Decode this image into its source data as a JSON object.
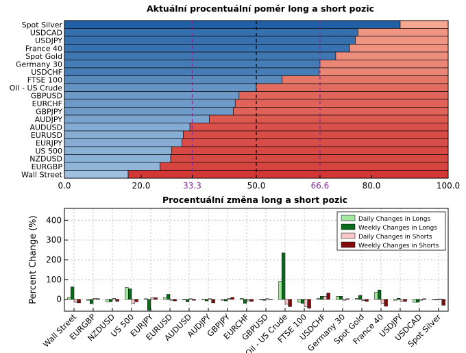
{
  "chart_data": [
    {
      "type": "bar",
      "orientation": "horizontal",
      "stacked": true,
      "title": "Aktuální procentuální poměr long a short pozic",
      "categories": [
        "Spot Silver",
        "USDCAD",
        "USDJPY",
        "France 40",
        "Spot Gold",
        "Germany 30",
        "USDCHF",
        "FTSE 100",
        "Oil - US Crude",
        "GBPUSD",
        "EURCHF",
        "GBPJPY",
        "AUDJPY",
        "AUDUSD",
        "EURUSD",
        "EURJPY",
        "US 500",
        "NZDUSD",
        "EURGBP",
        "Wall Street"
      ],
      "series": [
        {
          "values": [
            87.5,
            76.5,
            75.8,
            74.3,
            70.7,
            66.6,
            66.3,
            56.7,
            50.0,
            45.5,
            44.5,
            44.0,
            37.8,
            32.7,
            31.0,
            30.6,
            27.9,
            27.7,
            24.9,
            16.6
          ]
        },
        {
          "values": [
            12.5,
            23.5,
            24.2,
            25.7,
            29.3,
            33.4,
            33.7,
            43.3,
            50.0,
            54.5,
            55.5,
            56.0,
            62.2,
            67.3,
            69.0,
            69.4,
            72.1,
            72.3,
            75.1,
            83.4
          ]
        }
      ],
      "xlim": [
        0,
        100
      ],
      "xticks": [
        "0.0",
        "20.0",
        "33.3",
        "50.0",
        "66.6",
        "80.0",
        "100.0"
      ],
      "reference_lines": [
        33.3,
        50.0,
        66.6
      ],
      "colors": {
        "long_ramp": [
          "#bdd7ee",
          "#0b4f9a"
        ],
        "short_ramp": [
          "#fcbba1",
          "#c81d1f"
        ],
        "ref_purple": "#7e2a92"
      }
    },
    {
      "type": "bar",
      "title": "Procentuální změna long a short pozic",
      "ylabel": "Percent Change (%)",
      "categories": [
        "Wall Street",
        "EURGBP",
        "NZDUSD",
        "US 500",
        "EURJPY",
        "EURUSD",
        "AUDUSD",
        "AUDJPY",
        "GBPJPY",
        "EURCHF",
        "GBPUSD",
        "Oil - US Crude",
        "FTSE 100",
        "USDCHF",
        "Germany 30",
        "Spot Gold",
        "France 40",
        "USDJPY",
        "USDCAD",
        "Spot Silver"
      ],
      "series": [
        {
          "name": "Daily Changes in Longs",
          "color": "#a5e8a2",
          "values": [
            10,
            -5,
            -13,
            60,
            3,
            10,
            -3,
            -3,
            -5,
            5,
            -3,
            90,
            -15,
            5,
            15,
            5,
            35,
            -5,
            -15,
            -2
          ]
        },
        {
          "name": "Weekly Changes in Longs",
          "color": "#0b6b1d",
          "values": [
            63,
            -22,
            -12,
            53,
            -55,
            25,
            -12,
            -8,
            -8,
            -20,
            -5,
            235,
            -20,
            15,
            15,
            20,
            47,
            5,
            -15,
            -3
          ]
        },
        {
          "name": "Daily Changes in Shorts",
          "color": "#f7c8c8",
          "values": [
            -15,
            5,
            5,
            -20,
            10,
            -5,
            3,
            3,
            5,
            -8,
            3,
            -25,
            -37,
            15,
            -5,
            -7,
            -20,
            -10,
            -5,
            2
          ]
        },
        {
          "name": "Weekly Changes in Shorts",
          "color": "#820a0a",
          "values": [
            -18,
            3,
            -10,
            -12,
            8,
            -8,
            -5,
            -18,
            10,
            -10,
            0,
            -37,
            -45,
            32,
            3,
            -10,
            -35,
            -10,
            3,
            -30
          ]
        }
      ],
      "ylim": [
        -60,
        460
      ],
      "yticks": [
        0,
        100,
        200,
        300,
        400
      ],
      "grid": true,
      "legend": "top-right"
    }
  ]
}
